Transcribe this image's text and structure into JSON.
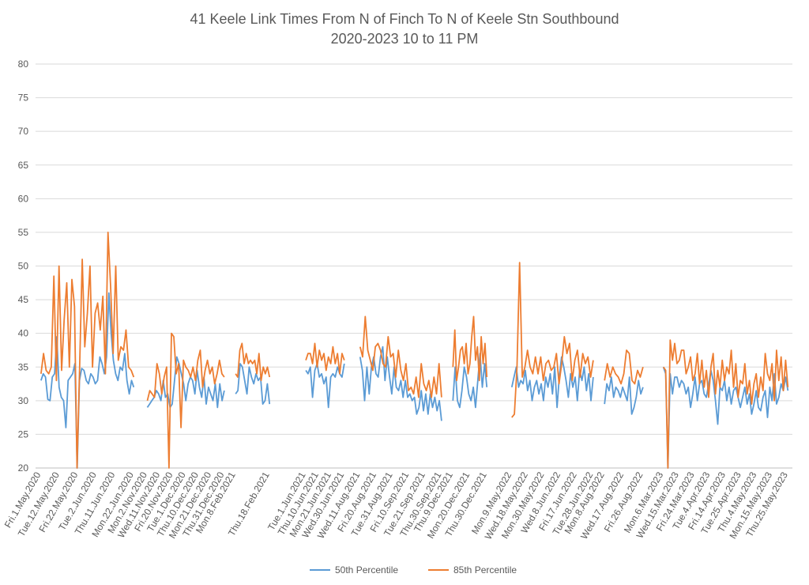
{
  "chart_data": {
    "type": "line",
    "title": "41 Keele Link Times From N of Finch To N of Keele Stn Southbound",
    "subtitle": "2020-2023 10 to 11 PM",
    "xlabel": "",
    "ylabel": "",
    "ylim": [
      20,
      80
    ],
    "yticks": [
      "80",
      "75",
      "70",
      "65",
      "60",
      "55",
      "50",
      "45",
      "40",
      "35",
      "30",
      "25",
      "20"
    ],
    "grid": true,
    "legend_position": "bottom",
    "categories": [
      "Fri.1.May.2020",
      "Tue.12.May.2020",
      "Fri.22.May.2020",
      "Tue.2.Jun.2020",
      "Thu.11.Jun.2020",
      "Mon.22.Jun.2020",
      "Mon.2.Nov.2020",
      "Wed.11.Nov.2020",
      "Fri.20.Nov.2020",
      "Tue.1.Dec.2020",
      "Thu.10.Dec.2020",
      "Mon.21.Dec.2020",
      "Thu.31.Dec.2020",
      "Mon.8.Feb.2021",
      "Thu.18.Feb.2021",
      "Tue.1.Jun.2021",
      "Thu.10.Jun.2021",
      "Mon.21.Jun.2021",
      "Wed.30.Jun.2021",
      "Wed.11.Aug.2021",
      "Fri.20.Aug.2021",
      "Tue.31.Aug.2021",
      "Fri.10.Sep.2021",
      "Tue.21.Sep.2021",
      "Thu.30.Sep.2021",
      "Thu.9.Dec.2021",
      "Mon.20.Dec.2021",
      "Thu.30.Dec.2021",
      "Mon.9.May.2022",
      "Wed.18.May.2022",
      "Mon.30.May.2022",
      "Wed.8.Jun.2022",
      "Fri.17.Jun.2022",
      "Tue.28.Jun.2022",
      "Mon.8.Aug.2022",
      "Wed.17.Aug.2022",
      "Fri.26.Aug.2022",
      "Mon.6.Mar.2023",
      "Wed.15.Mar.2023",
      "Fri.24.Mar.2023",
      "Tue.4.Apr.2023",
      "Fri.14.Apr.2023",
      "Tue.25.Apr.2023",
      "Thu.4.May.2023",
      "Mon.15.May.2023",
      "Thu.25.May.2023"
    ],
    "series": [
      {
        "name": "50th Percentile",
        "color": "#5b9bd5",
        "segments": [
          [
            33.0,
            34.0,
            33.5,
            30.2,
            30.0,
            33.5,
            34.0,
            39.5,
            32.0,
            30.5,
            30.0,
            26.0,
            33.0,
            33.5,
            34.0,
            35.5,
            20.0,
            33.0,
            34.8,
            34.5,
            33.0,
            32.5,
            34.0,
            33.5,
            32.5,
            33.0,
            36.5,
            35.5,
            34.0,
            36.5,
            46.0,
            40.0,
            36.0,
            34.0,
            33.0,
            35.0,
            34.5,
            37.0,
            33.0,
            31.0,
            33.0,
            32.0
          ],
          [
            29.0,
            29.5,
            30.0,
            30.5,
            31.5,
            31.0,
            30.0,
            33.0,
            30.5,
            31.0,
            29.0,
            29.5,
            33.0,
            36.5,
            35.5,
            34.0,
            32.5,
            30.0,
            32.5,
            33.5,
            33.0,
            31.0,
            34.5,
            32.0,
            30.5,
            33.5,
            29.5,
            32.0,
            31.0,
            30.0,
            32.5,
            29.0,
            32.5,
            30.0,
            31.5
          ],
          [
            31.0,
            31.5,
            35.5,
            35.0,
            33.0,
            31.0,
            35.0,
            33.5,
            32.5,
            34.0,
            33.0,
            33.5,
            29.5,
            30.0,
            32.5,
            29.5
          ],
          [
            34.5,
            34.0,
            35.0,
            30.5,
            34.5,
            35.5,
            33.5,
            34.0,
            32.5,
            33.5,
            29.0,
            33.5,
            34.0,
            33.5,
            35.0,
            34.0,
            33.5,
            35.5
          ],
          [
            36.5,
            34.5,
            30.0,
            35.0,
            31.0,
            35.0,
            36.5,
            34.0,
            33.5,
            36.5,
            38.0,
            33.0,
            36.5,
            33.5,
            31.0,
            35.0,
            32.0,
            31.5,
            33.0,
            30.5,
            33.0,
            30.5,
            31.0,
            30.0,
            30.5,
            28.0,
            29.0,
            31.5,
            28.5,
            31.0,
            28.0,
            31.0,
            29.0,
            30.5,
            28.5,
            30.0,
            27.0
          ],
          [
            30.0,
            35.0,
            30.0,
            29.0,
            31.5,
            35.0,
            33.5,
            31.0,
            30.0,
            32.0,
            29.0,
            33.0,
            37.0,
            32.0,
            35.5,
            32.0
          ],
          [
            32.0,
            33.5,
            35.0,
            32.0,
            33.0,
            32.5,
            34.5,
            31.5,
            33.0,
            30.0,
            32.0,
            33.0,
            31.0,
            32.5,
            30.0,
            33.5,
            32.0,
            34.0,
            31.0,
            35.0,
            29.0,
            33.5,
            36.5,
            35.0,
            33.0,
            30.5,
            34.0,
            32.0,
            33.5,
            30.0,
            34.5,
            33.0,
            35.0,
            31.5,
            34.0,
            30.0,
            33.5
          ],
          [
            29.5,
            32.5,
            31.5,
            33.5,
            30.5,
            32.0,
            31.5,
            30.5,
            32.0,
            31.0,
            30.0,
            33.5,
            28.0,
            29.0,
            30.5,
            33.0,
            31.0,
            32.0
          ],
          [
            35.0,
            34.0,
            20.0,
            34.0,
            31.0,
            33.5,
            33.5,
            32.0,
            33.0,
            32.5,
            31.0,
            32.0,
            29.0,
            31.0,
            33.5,
            30.0,
            32.5,
            33.0,
            31.0,
            30.5,
            32.5,
            34.5,
            33.0,
            30.0,
            26.5,
            32.0,
            31.5,
            33.0,
            30.0,
            32.0,
            29.5,
            31.5,
            32.0,
            30.5,
            29.0,
            30.5,
            32.0,
            29.5,
            31.0,
            28.0,
            29.5,
            31.5,
            29.0,
            28.5,
            30.5,
            31.5,
            27.5,
            32.0,
            30.0,
            34.0,
            29.5,
            30.5,
            32.5,
            31.5,
            33.5,
            31.5
          ]
        ]
      },
      {
        "name": "85th Percentile",
        "color": "#ed7d31",
        "segments": [
          [
            34.0,
            37.0,
            34.5,
            34.0,
            35.0,
            48.5,
            33.0,
            50.0,
            34.5,
            42.0,
            47.5,
            35.0,
            48.0,
            44.0,
            20.0,
            35.0,
            51.0,
            38.0,
            43.0,
            50.0,
            35.0,
            43.0,
            44.5,
            40.5,
            45.5,
            34.0,
            55.0,
            47.0,
            37.0,
            50.0,
            36.0,
            38.0,
            37.5,
            40.5,
            35.0,
            34.5,
            33.5
          ],
          [
            30.0,
            31.5,
            31.0,
            30.5,
            35.5,
            34.0,
            31.0,
            33.5,
            35.0,
            20.0,
            40.0,
            39.5,
            34.0,
            35.5,
            26.0,
            36.0,
            35.0,
            34.5,
            33.5,
            35.0,
            33.0,
            36.0,
            37.5,
            32.0,
            34.5,
            36.0,
            34.0,
            35.0,
            32.5,
            34.0,
            36.0,
            34.0,
            33.5
          ],
          [
            34.0,
            33.5,
            37.5,
            38.5,
            35.5,
            37.0,
            35.5,
            36.0,
            35.5,
            36.0,
            34.0,
            37.0,
            33.0,
            35.0,
            34.0,
            35.0,
            33.5
          ],
          [
            36.0,
            37.0,
            37.0,
            35.5,
            38.5,
            35.0,
            37.5,
            36.0,
            37.0,
            34.5,
            36.5,
            35.5,
            38.0,
            35.5,
            37.0,
            34.0,
            37.0,
            36.0
          ],
          [
            38.0,
            36.5,
            42.5,
            37.5,
            36.0,
            34.5,
            38.0,
            38.5,
            37.5,
            35.5,
            35.0,
            39.5,
            36.5,
            37.0,
            33.5,
            37.5,
            34.5,
            33.0,
            35.5,
            31.5,
            32.0,
            31.0,
            33.5,
            30.5,
            35.5,
            32.5,
            31.5,
            33.0,
            30.5,
            33.5,
            31.0,
            35.5,
            30.5
          ],
          [
            35.0,
            40.5,
            33.0,
            35.0,
            37.5,
            38.0,
            35.5,
            38.5,
            34.0,
            35.5,
            39.5,
            42.5,
            36.0,
            38.0,
            33.0,
            39.5,
            35.5,
            38.5,
            33.5
          ],
          [
            27.5,
            28.0,
            35.0,
            50.5,
            33.5,
            35.0,
            37.5,
            35.0,
            34.0,
            36.5,
            34.0,
            36.5,
            33.0,
            35.5,
            36.0,
            34.5,
            35.0,
            37.0,
            32.5,
            35.5,
            39.5,
            37.0,
            38.5,
            33.0,
            36.0,
            37.5,
            33.5,
            37.0,
            35.5,
            36.5,
            33.5,
            36.0
          ],
          [
            33.0,
            35.5,
            33.5,
            35.0,
            34.0,
            33.5,
            32.5,
            34.0,
            37.5,
            37.0,
            33.0,
            32.5,
            34.5,
            33.5,
            35.0
          ],
          [
            35.0,
            34.5,
            20.0,
            39.0,
            36.0,
            38.5,
            35.5,
            36.0,
            37.5,
            37.5,
            34.0,
            35.0,
            36.5,
            33.0,
            34.0,
            37.0,
            32.5,
            36.0,
            32.0,
            34.5,
            30.5,
            35.0,
            37.0,
            31.0,
            34.5,
            32.0,
            36.0,
            33.0,
            35.0,
            34.0,
            37.5,
            32.0,
            35.5,
            30.5,
            33.0,
            32.5,
            35.5,
            31.0,
            33.0,
            29.5,
            32.5,
            34.0,
            30.5,
            33.5,
            31.5,
            37.0,
            34.0,
            33.0,
            35.5,
            30.0,
            37.5,
            33.0,
            36.5,
            31.5,
            36.0,
            32.0
          ]
        ]
      }
    ]
  }
}
